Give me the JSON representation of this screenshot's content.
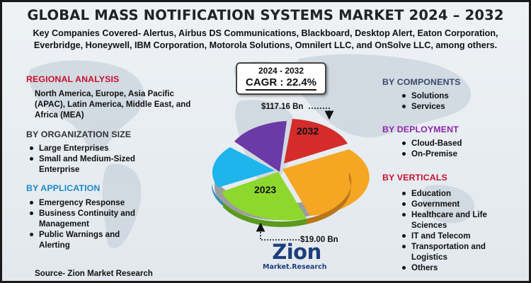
{
  "header": {
    "title": "GLOBAL MASS NOTIFICATION SYSTEMS MARKET 2024 – 2032",
    "subtitle_line1": "Key Companies Covered- Alertus, Airbus DS Communications, Blackboard, Desktop Alert, Eaton Corporation,",
    "subtitle_line2": "Everbridge, Honeywell, IBM Corporation, Motorola Solutions, Omnilert LLC, and OnSolve LLC, among others."
  },
  "left": {
    "regional": {
      "heading": "REGIONAL ANALYSIS",
      "text_line1": "North America, Europe, Asia Pacific",
      "text_line2": "(APAC), Latin America, Middle East, and",
      "text_line3": "Africa (MEA)"
    },
    "org_size": {
      "heading": "BY ORGANIZATION SIZE",
      "items": [
        "Large Enterprises",
        "Small and Medium-Sized",
        "Enterprise"
      ]
    },
    "application": {
      "heading": "BY APPLICATION",
      "items": [
        "Emergency Response",
        "Business Continuity and",
        "Management",
        "Public Warnings and",
        "Alerting"
      ]
    }
  },
  "center": {
    "period": "2024 - 2032",
    "cagr": "CAGR : 22.4%",
    "value_2032": "$117.16 Bn",
    "value_2023": "$19.00 Bn",
    "label_2032": "2032",
    "label_2023": "2023"
  },
  "right": {
    "components": {
      "heading": "BY COMPONENTS",
      "items": [
        "Solutions",
        "Services"
      ]
    },
    "deployment": {
      "heading": "BY DEPLOYMENT",
      "items": [
        "Cloud-Based",
        "On-Premise"
      ]
    },
    "verticals": {
      "heading": "BY VERTICALS",
      "items": [
        "Education",
        "Government",
        "Healthcare and Life",
        "Sciences",
        "IT and Telecom",
        "Transportation and",
        "Logistics",
        "Others"
      ]
    }
  },
  "footer": {
    "source": "Source- Zion Market Research",
    "logo_word": "Zion",
    "logo_sub": "Market.Research"
  },
  "colors": {
    "slice_red": "#d42b2b",
    "slice_orange": "#f5a623",
    "slice_green": "#8ed82e",
    "slice_blue": "#1eb4ec",
    "slice_purple": "#6a3aa6"
  }
}
